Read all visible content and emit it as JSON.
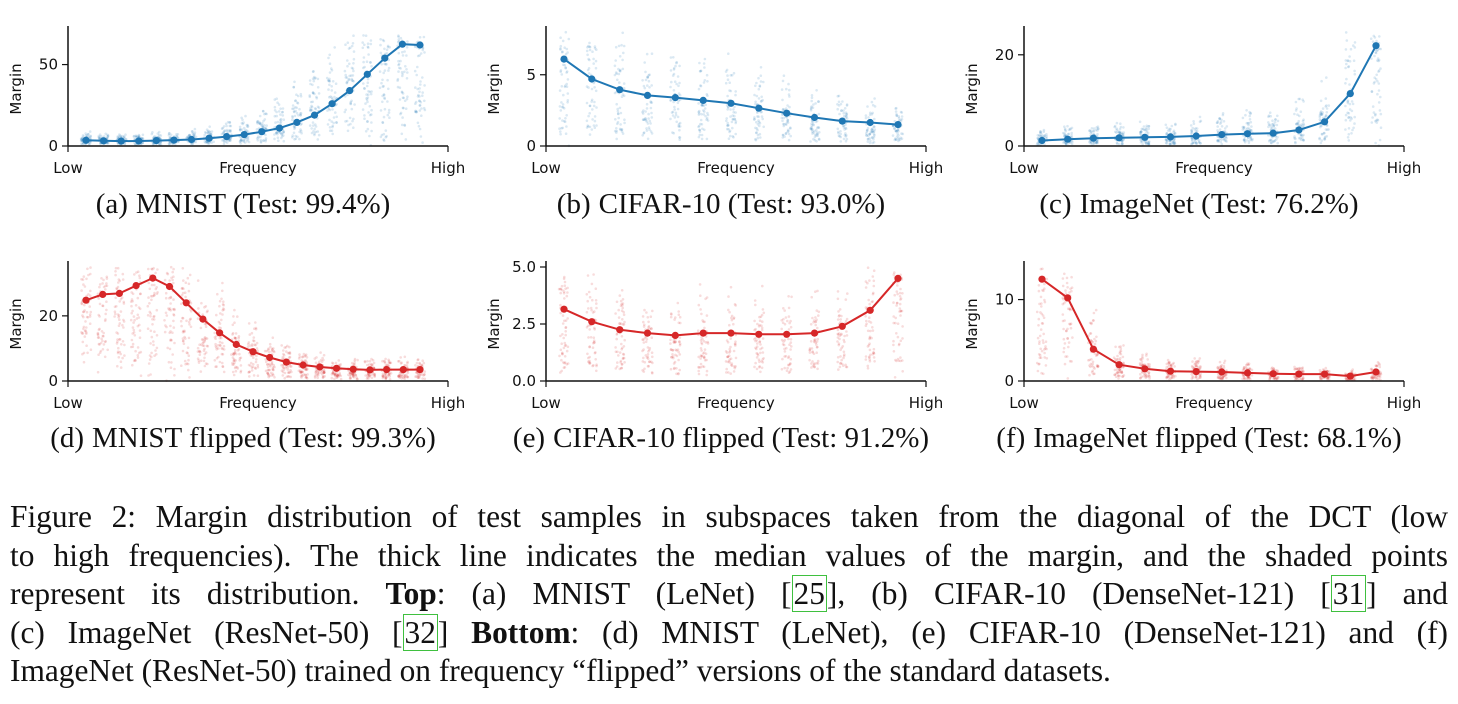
{
  "colors": {
    "blue": "#1f77b4",
    "red": "#d62728"
  },
  "panels": [
    {
      "id": "a",
      "tag": "(a)",
      "label": "MNIST (Test: 99.4%)",
      "color": "blue",
      "chart_data": {
        "type": "line",
        "xlabel": "Frequency",
        "ylabel": "Margin",
        "xticklabels": [
          "Low",
          "High"
        ],
        "yticks": [
          0,
          50
        ],
        "yticklabels": [
          "0",
          "50"
        ],
        "ylim": [
          0,
          70
        ],
        "series": [
          {
            "values": [
              3.5,
              3.2,
              3.0,
              3.1,
              3.3,
              3.6,
              4.0,
              4.8,
              5.8,
              7.0,
              8.8,
              11.0,
              14.5,
              19.0,
              26.0,
              34.0,
              44.0,
              54.0,
              62.5,
              62.0
            ]
          }
        ],
        "scatter": {
          "spread": [
            0.3,
            2.0
          ],
          "max": 68
        }
      }
    },
    {
      "id": "b",
      "tag": "(b)",
      "label": "CIFAR-10 (Test: 93.0%)",
      "color": "blue",
      "chart_data": {
        "type": "line",
        "xlabel": "Frequency",
        "ylabel": "Margin",
        "xticklabels": [
          "Low",
          "High"
        ],
        "yticks": [
          0,
          5
        ],
        "yticklabels": [
          "0",
          "5"
        ],
        "ylim": [
          0,
          8
        ],
        "series": [
          {
            "values": [
              6.1,
              4.7,
              3.95,
              3.55,
              3.4,
              3.2,
              3.0,
              2.65,
              2.3,
              2.0,
              1.75,
              1.65,
              1.5
            ]
          }
        ],
        "scatter": {
          "spread": [
            0.2,
            1.6
          ],
          "max": 8
        }
      }
    },
    {
      "id": "c",
      "tag": "(c)",
      "label": "ImageNet (Test: 76.2%)",
      "color": "blue",
      "chart_data": {
        "type": "line",
        "xlabel": "Frequency",
        "ylabel": "Margin",
        "xticklabels": [
          "Low",
          "High"
        ],
        "yticks": [
          0,
          20
        ],
        "yticklabels": [
          "0",
          "20"
        ],
        "ylim": [
          0,
          25
        ],
        "series": [
          {
            "values": [
              1.2,
              1.5,
              1.7,
              1.8,
              1.9,
              2.0,
              2.2,
              2.5,
              2.7,
              2.8,
              3.5,
              5.3,
              11.5,
              22.0
            ]
          }
        ],
        "scatter": {
          "spread": [
            0.2,
            2.2
          ],
          "max": 25
        }
      }
    },
    {
      "id": "d",
      "tag": "(d)",
      "label": "MNIST flipped (Test: 99.3%)",
      "color": "red",
      "chart_data": {
        "type": "line",
        "xlabel": "Frequency",
        "ylabel": "Margin",
        "xticklabels": [
          "Low",
          "High"
        ],
        "yticks": [
          0,
          20
        ],
        "yticklabels": [
          "0",
          "20"
        ],
        "ylim": [
          0,
          35
        ],
        "series": [
          {
            "values": [
              24.8,
              26.6,
              26.9,
              29.3,
              31.6,
              29.0,
              24.0,
              19.0,
              14.8,
              11.2,
              9.0,
              7.2,
              5.8,
              4.9,
              4.3,
              3.9,
              3.6,
              3.4,
              3.5,
              3.5,
              3.5
            ]
          }
        ],
        "scatter": {
          "spread": [
            0.2,
            1.6
          ],
          "max": 35
        }
      }
    },
    {
      "id": "e",
      "tag": "(e)",
      "label": "CIFAR-10 flipped (Test: 91.2%)",
      "color": "red",
      "chart_data": {
        "type": "line",
        "xlabel": "Frequency",
        "ylabel": "Margin",
        "xticklabels": [
          "Low",
          "High"
        ],
        "yticks": [
          0,
          2.5,
          5.0
        ],
        "yticklabels": [
          "0.0",
          "2.5",
          "5.0"
        ],
        "ylim": [
          0,
          5
        ],
        "series": [
          {
            "values": [
              3.15,
              2.6,
              2.25,
              2.1,
              2.0,
              2.1,
              2.1,
              2.05,
              2.05,
              2.1,
              2.4,
              3.1,
              4.5
            ]
          }
        ],
        "scatter": {
          "spread": [
            0.2,
            1.5
          ],
          "max": 5
        }
      }
    },
    {
      "id": "f",
      "tag": "(f)",
      "label": "ImageNet flipped (Test: 68.1%)",
      "color": "red",
      "chart_data": {
        "type": "line",
        "xlabel": "Frequency",
        "ylabel": "Margin",
        "xticklabels": [
          "Low",
          "High"
        ],
        "yticks": [
          0,
          10
        ],
        "yticklabels": [
          "0",
          "10"
        ],
        "ylim": [
          0,
          14
        ],
        "series": [
          {
            "values": [
              12.5,
              10.2,
              3.9,
              2.0,
              1.5,
              1.2,
              1.15,
              1.1,
              1.0,
              0.9,
              0.85,
              0.85,
              0.6,
              1.1
            ]
          }
        ],
        "scatter": {
          "spread": [
            0.2,
            1.8
          ],
          "max": 14
        }
      }
    }
  ],
  "figure_caption": {
    "line1": "Figure 2: Margin distribution of test samples in subspaces taken from the diagonal of the DCT (low",
    "line2": "to high frequencies). The thick line indicates the median values of the margin, and the shaded points",
    "line3_a": "represent its distribution.",
    "line3_bold": "Top",
    "line3_b": ": (a) MNIST (LeNet) [",
    "cite1": "25",
    "line3_c": "], (b) CIFAR-10 (DenseNet-121) [",
    "cite2": "31",
    "line3_d": "] and",
    "line4_a": "(c) ImageNet (ResNet-50) [",
    "cite3": "32",
    "line4_b": "]",
    "line4_bold": "Bottom",
    "line4_c": ": (d) MNIST (LeNet), (e) CIFAR-10 (DenseNet-121) and (f)",
    "line5": "ImageNet (ResNet-50) trained on frequency “flipped” versions of the standard datasets."
  }
}
